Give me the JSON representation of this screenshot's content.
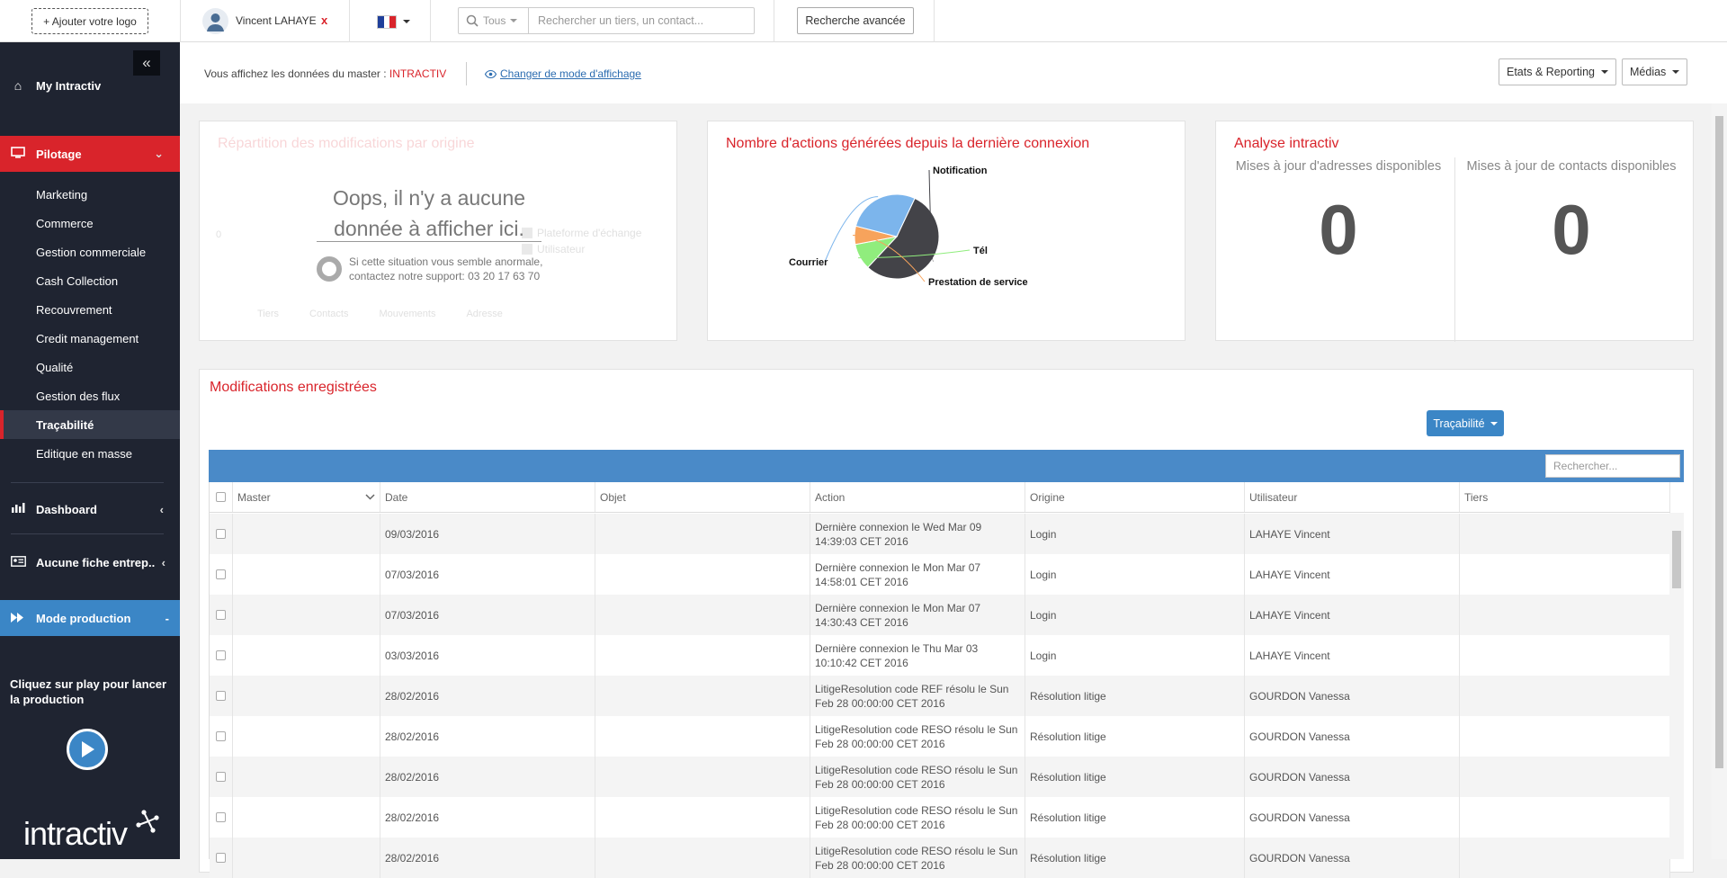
{
  "topbar": {
    "logo_button": "+ Ajouter votre logo",
    "user_name": "Vincent LAHAYE",
    "user_close": "x",
    "search_scope": "Tous",
    "search_placeholder": "Rechercher un tiers, un contact...",
    "advanced_search": "Recherche avancée"
  },
  "sidebar": {
    "my_intractiv": "My Intractiv",
    "pilotage": "Pilotage",
    "subitems": [
      "Marketing",
      "Commerce",
      "Gestion commerciale",
      "Cash Collection",
      "Recouvrement",
      "Credit management",
      "Qualité",
      "Gestion des flux",
      "Traçabilité",
      "Editique en masse"
    ],
    "dashboard": "Dashboard",
    "no_company": "Aucune fiche entrep..",
    "mode_production": "Mode production",
    "mode_dash": "-",
    "play_text": "Cliquez sur play pour lancer la production",
    "brand": "intractiv"
  },
  "infobar": {
    "master_prefix": "Vous affichez les données du master :",
    "master_name": "INTRACTIV",
    "view_mode_link": "Changer de mode d'affichage",
    "reporting_btn": "Etats & Reporting",
    "media_btn": "Médias"
  },
  "panel1": {
    "title": "Répartition des modifications par origine",
    "zero": "0",
    "legend": [
      "Plateforme d'échange",
      "Utilisateur"
    ],
    "axis": [
      "Tiers",
      "Contacts",
      "Mouvements",
      "Adresse"
    ],
    "oops": "Oops, il n'y a aucune donnée à afficher ici.",
    "support": "Si cette situation vous semble anormale, contactez notre support: 03 20 17 63 70"
  },
  "panel2": {
    "title": "Nombre d'actions générées depuis la dernière connexion"
  },
  "chart_data": {
    "type": "pie",
    "categories": [
      "Notification",
      "Tél",
      "Prestation de service",
      "Courrier"
    ],
    "values": [
      55,
      10,
      7,
      28
    ],
    "colors": [
      "#434348",
      "#90ed7d",
      "#f7a35c",
      "#7cb5ec"
    ]
  },
  "panel3": {
    "title": "Analyse intractiv",
    "stat1_label": "Mises à jour d'adresses disponibles",
    "stat1_value": "0",
    "stat2_label": "Mises à jour de contacts disponibles",
    "stat2_value": "0"
  },
  "modifications": {
    "title": "Modifications enregistrées",
    "trace_btn": "Traçabilité",
    "search_placeholder": "Rechercher...",
    "columns": [
      "Master",
      "Date",
      "Objet",
      "Action",
      "Origine",
      "Utilisateur",
      "Tiers"
    ],
    "rows": [
      {
        "master": "",
        "date": "09/03/2016",
        "objet": "",
        "action": "Dernière connexion le Wed Mar 09 14:39:03 CET 2016",
        "origine": "Login",
        "utilisateur": "LAHAYE Vincent",
        "tiers": ""
      },
      {
        "master": "",
        "date": "07/03/2016",
        "objet": "",
        "action": "Dernière connexion le Mon Mar 07 14:58:01 CET 2016",
        "origine": "Login",
        "utilisateur": "LAHAYE Vincent",
        "tiers": ""
      },
      {
        "master": "",
        "date": "07/03/2016",
        "objet": "",
        "action": "Dernière connexion le Mon Mar 07 14:30:43 CET 2016",
        "origine": "Login",
        "utilisateur": "LAHAYE Vincent",
        "tiers": ""
      },
      {
        "master": "",
        "date": "03/03/2016",
        "objet": "",
        "action": "Dernière connexion le Thu Mar 03 10:10:42 CET 2016",
        "origine": "Login",
        "utilisateur": "LAHAYE Vincent",
        "tiers": ""
      },
      {
        "master": "",
        "date": "28/02/2016",
        "objet": "",
        "action": "LitigeResolution code REF résolu le Sun Feb 28 00:00:00 CET 2016",
        "origine": "Résolution litige",
        "utilisateur": "GOURDON Vanessa",
        "tiers": ""
      },
      {
        "master": "",
        "date": "28/02/2016",
        "objet": "",
        "action": "LitigeResolution code RESO résolu le Sun Feb 28 00:00:00 CET 2016",
        "origine": "Résolution litige",
        "utilisateur": "GOURDON Vanessa",
        "tiers": ""
      },
      {
        "master": "",
        "date": "28/02/2016",
        "objet": "",
        "action": "LitigeResolution code RESO résolu le Sun Feb 28 00:00:00 CET 2016",
        "origine": "Résolution litige",
        "utilisateur": "GOURDON Vanessa",
        "tiers": ""
      },
      {
        "master": "",
        "date": "28/02/2016",
        "objet": "",
        "action": "LitigeResolution code RESO résolu le Sun Feb 28 00:00:00 CET 2016",
        "origine": "Résolution litige",
        "utilisateur": "GOURDON Vanessa",
        "tiers": ""
      },
      {
        "master": "",
        "date": "28/02/2016",
        "objet": "",
        "action": "LitigeResolution code RESO résolu le Sun Feb 28 00:00:00 CET 2016",
        "origine": "Résolution litige",
        "utilisateur": "GOURDON Vanessa",
        "tiers": ""
      }
    ]
  }
}
